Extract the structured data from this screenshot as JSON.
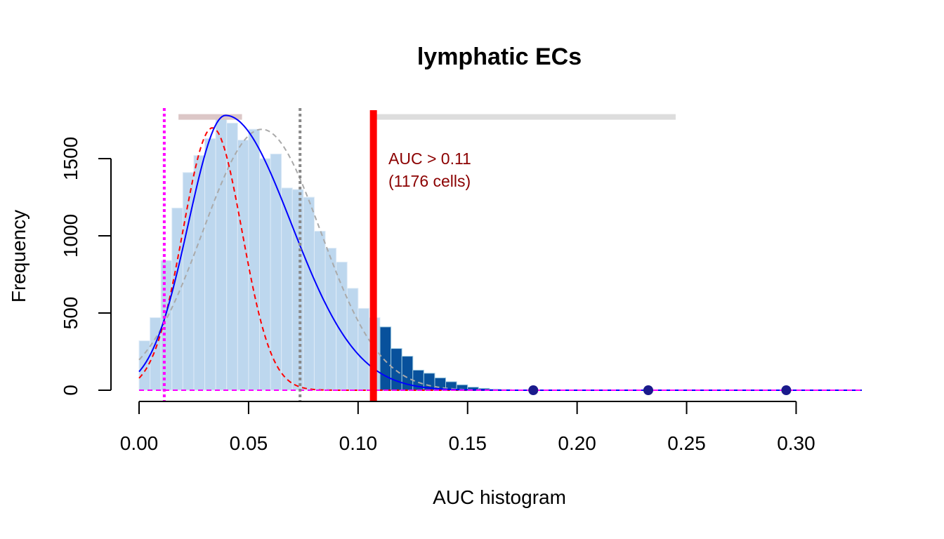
{
  "chart_data": {
    "type": "histogram",
    "title": "lymphatic ECs",
    "xlabel": "AUC histogram",
    "ylabel": "Frequency",
    "xlim": [
      0,
      0.33
    ],
    "ylim": [
      0,
      1800
    ],
    "x_ticks": [
      0.0,
      0.05,
      0.1,
      0.15,
      0.2,
      0.25,
      0.3
    ],
    "x_tick_labels": [
      "0.00",
      "0.05",
      "0.10",
      "0.15",
      "0.20",
      "0.25",
      "0.30"
    ],
    "y_ticks": [
      0,
      500,
      1000,
      1500
    ],
    "y_tick_labels": [
      "0",
      "500",
      "1000",
      "1500"
    ],
    "bin_width": 0.005,
    "bins_start": 0.0,
    "counts": [
      320,
      470,
      840,
      1180,
      1410,
      1520,
      1630,
      1780,
      1730,
      1620,
      1690,
      1500,
      1530,
      1310,
      1300,
      1250,
      1030,
      920,
      830,
      660,
      530,
      470,
      410,
      270,
      220,
      130,
      110,
      80,
      55,
      35,
      20,
      12,
      6,
      4,
      2,
      1
    ],
    "threshold": 0.107,
    "threshold_label": "AUC > 0.11",
    "threshold_cells": "(1176 cells)",
    "vlines": [
      {
        "x": 0.0115,
        "color": "#ff00ff",
        "style": "dotted"
      },
      {
        "x": 0.0735,
        "color": "#888888",
        "style": "dotted"
      }
    ],
    "range_bars": [
      {
        "x0": 0.018,
        "x1": 0.047,
        "y": 1770,
        "color": "#dcc7c7"
      },
      {
        "x0": 0.107,
        "x1": 0.245,
        "y": 1770,
        "color": "#dddddd"
      }
    ],
    "outlier_points": [
      0.18,
      0.2325,
      0.2955
    ],
    "density_fit": {
      "peak_x": 0.0395,
      "peak_y": 1780,
      "sd_left": 0.017,
      "sd_right": 0.03,
      "color": "#0000ff"
    },
    "mixture_component_1": {
      "mean": 0.0335,
      "sd": 0.0135,
      "peak_y": 1700,
      "color": "#ff0000",
      "style": "dashed"
    },
    "mixture_component_2": {
      "mean": 0.056,
      "sd": 0.027,
      "peak_y": 1690,
      "color": "#aaaaaa",
      "style": "dashed"
    },
    "baseline_color": "#ff00ff",
    "colors": {
      "bar_below": "#bdd7ee",
      "bar_above": "#08519c",
      "threshold_line": "#ff0000",
      "points": "#1a1a8c",
      "annotation": "#8b0000"
    },
    "grid": false,
    "legend": "none"
  }
}
